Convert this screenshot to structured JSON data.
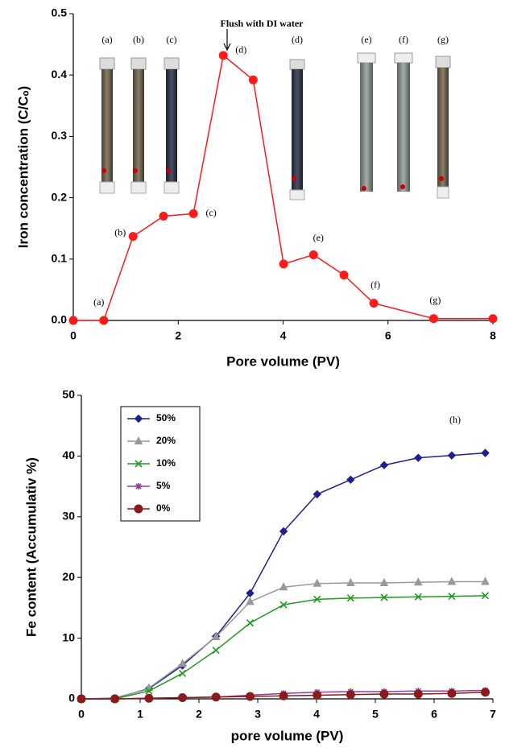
{
  "chart_data": [
    {
      "type": "line",
      "xlabel": "Pore volume (PV)",
      "ylabel": "Iron concentration (C/Cₒ)",
      "x": [
        0,
        0.58,
        1.14,
        1.72,
        2.29,
        2.86,
        3.43,
        4.01,
        4.58,
        5.16,
        5.73,
        6.87,
        8
      ],
      "values": [
        0,
        0,
        0.137,
        0.17,
        0.174,
        0.432,
        0.392,
        0.092,
        0.107,
        0.074,
        0.028,
        0.003,
        0.003
      ],
      "point_labels": [
        null,
        "(a)",
        "(b)",
        null,
        "(c)",
        "(d)",
        null,
        null,
        "(e)",
        null,
        "(f)",
        "(g)",
        null
      ],
      "color": "#ff1a1a",
      "marker": "circle",
      "annotation": "Flush with DI water",
      "photo_labels": [
        "(a)",
        "(b)",
        "(c)",
        "(d)",
        "(e)",
        "(f)",
        "(g)"
      ],
      "xlim": [
        0,
        8
      ],
      "xticks": [
        0,
        2,
        4,
        6,
        8
      ],
      "ylim": [
        0,
        0.5
      ],
      "yticks": [
        {
          "value": 0,
          "label": "0.0"
        },
        {
          "value": 0.1,
          "label": "0.1"
        },
        {
          "value": 0.2,
          "label": "0.2"
        },
        {
          "value": 0.3,
          "label": "0.3"
        },
        {
          "value": 0.4,
          "label": "0.4"
        },
        {
          "value": 0.5,
          "label": "0.5"
        }
      ]
    },
    {
      "type": "line",
      "xlabel": "pore volume (PV)",
      "ylabel": "Fe content (Accumulativ %)",
      "annotation": "(h)",
      "x": [
        0,
        0.57,
        1.15,
        1.72,
        2.29,
        2.87,
        3.44,
        4.01,
        4.58,
        5.15,
        5.73,
        6.3,
        6.87
      ],
      "series": [
        {
          "name": "50%",
          "color": "#1f1f8f",
          "marker": "diamond",
          "values": [
            0,
            0.1,
            1.7,
            5.5,
            10.3,
            17.4,
            27.6,
            33.7,
            36.1,
            38.5,
            39.7,
            40.1,
            40.5
          ]
        },
        {
          "name": "20%",
          "color": "#999999",
          "marker": "triangle",
          "values": [
            0,
            0,
            1.8,
            5.8,
            10.2,
            16.0,
            18.4,
            19.0,
            19.1,
            19.1,
            19.2,
            19.3,
            19.3
          ]
        },
        {
          "name": "10%",
          "color": "#1f9a1f",
          "marker": "x",
          "values": [
            0,
            0,
            1.3,
            4.2,
            8.0,
            12.5,
            15.5,
            16.4,
            16.6,
            16.7,
            16.8,
            16.9,
            17.0
          ]
        },
        {
          "name": "5%",
          "color": "#9a3a9a",
          "marker": "star",
          "values": [
            0,
            0,
            0.1,
            0.2,
            0.3,
            0.6,
            0.9,
            1.1,
            1.2,
            1.2,
            1.3,
            1.3,
            1.4
          ]
        },
        {
          "name": "0%",
          "color": "#8b1a1a",
          "marker": "circle",
          "values": [
            0,
            0,
            0.1,
            0.2,
            0.3,
            0.4,
            0.5,
            0.6,
            0.7,
            0.8,
            0.8,
            0.9,
            1.1
          ]
        }
      ],
      "xlim": [
        0,
        7
      ],
      "xticks": [
        0,
        1,
        2,
        3,
        4,
        5,
        6,
        7
      ],
      "ylim": [
        0,
        50
      ],
      "yticks": [
        0,
        10,
        20,
        30,
        40,
        50
      ]
    }
  ]
}
